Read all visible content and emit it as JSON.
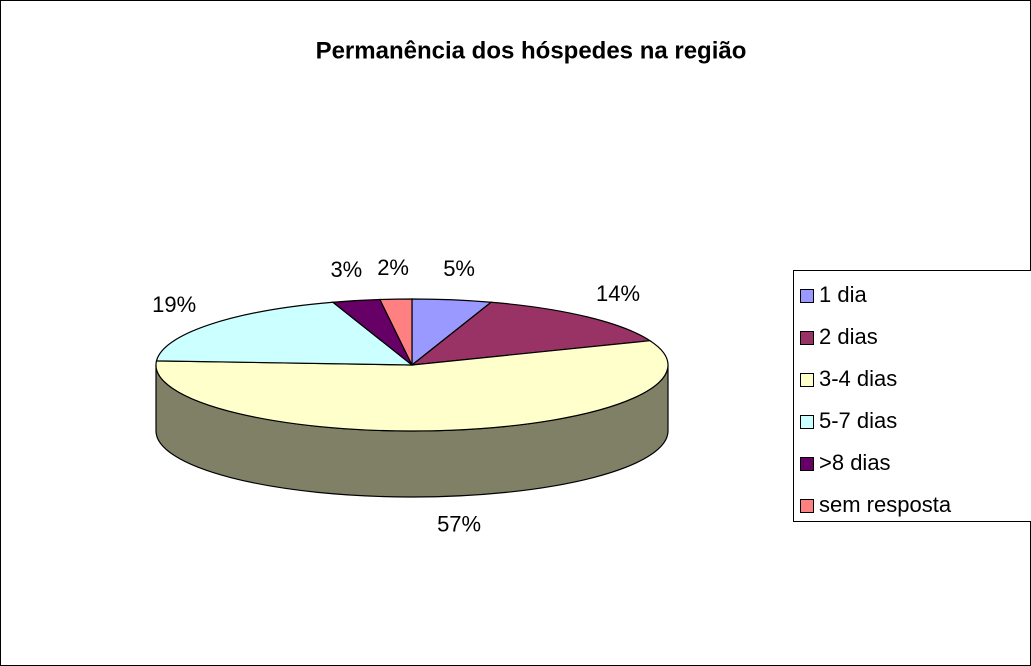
{
  "chart_data": {
    "type": "pie",
    "title": "Permanência dos hóspedes na região",
    "categories": [
      "1 dia",
      "2 dias",
      "3-4 dias",
      "5-7 dias",
      ">8 dias",
      "sem resposta"
    ],
    "values": [
      5,
      14,
      57,
      19,
      3,
      2
    ],
    "value_labels": [
      "5%",
      "14%",
      "57%",
      "19%",
      "3%",
      "2%"
    ],
    "colors": [
      "#9999ff",
      "#993366",
      "#ffffcc",
      "#ccffff",
      "#660066",
      "#ff8080"
    ],
    "legend": "right"
  }
}
